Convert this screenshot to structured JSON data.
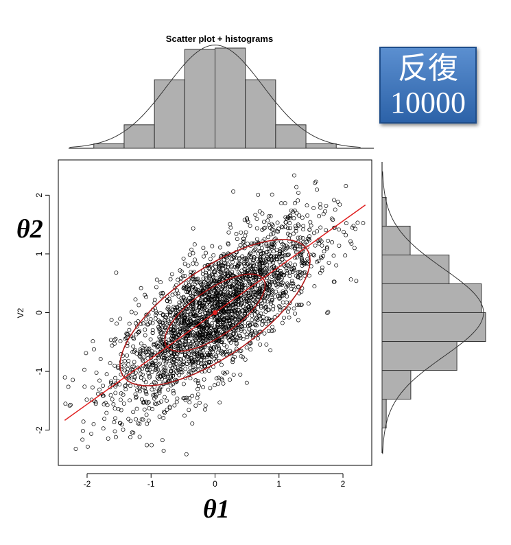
{
  "chart_data": {
    "type": "scatter",
    "title": "Scatter plot + histograms",
    "xlabel": "",
    "ylabel": "V2",
    "xlim": [
      -2.45,
      2.45
    ],
    "ylim": [
      -2.6,
      2.6
    ],
    "x_ticks": [
      "-2",
      "-1",
      "0",
      "1",
      "2"
    ],
    "y_ticks": [
      "-2",
      "-1",
      "0",
      "1",
      "2"
    ],
    "n_points": 10000,
    "regression_line": {
      "intercept": 0.0,
      "slope": 0.78,
      "x_range": [
        -2.35,
        2.35
      ]
    },
    "center": [
      0.0,
      0.0
    ],
    "ellipses": [
      {
        "label": "inner",
        "semi_major": 0.95,
        "semi_minor": 0.38,
        "angle_deg": 38
      },
      {
        "label": "outer",
        "semi_major": 1.8,
        "semi_minor": 0.72,
        "angle_deg": 38
      }
    ],
    "top_histogram": {
      "bin_edges": [
        -2.0,
        -1.5,
        -1.0,
        -0.5,
        0.0,
        0.5,
        1.0,
        1.5,
        2.0
      ],
      "counts": [
        70,
        370,
        1080,
        1560,
        1580,
        1080,
        370,
        70
      ]
    },
    "right_histogram": {
      "bin_edges": [
        -2.0,
        -1.5,
        -1.0,
        -0.5,
        0.0,
        0.5,
        1.0,
        1.5,
        2.0
      ],
      "counts": [
        70,
        480,
        1250,
        1730,
        1660,
        1120,
        470,
        70
      ]
    }
  },
  "labels": {
    "x_big": "θ1",
    "y_big": "θ2"
  },
  "badge": {
    "line1": "反復",
    "line2": "10000"
  },
  "colors": {
    "bars": "#b0b0b0",
    "points": "#000000",
    "fit": "#e02020",
    "badge": "#3f76bf"
  }
}
